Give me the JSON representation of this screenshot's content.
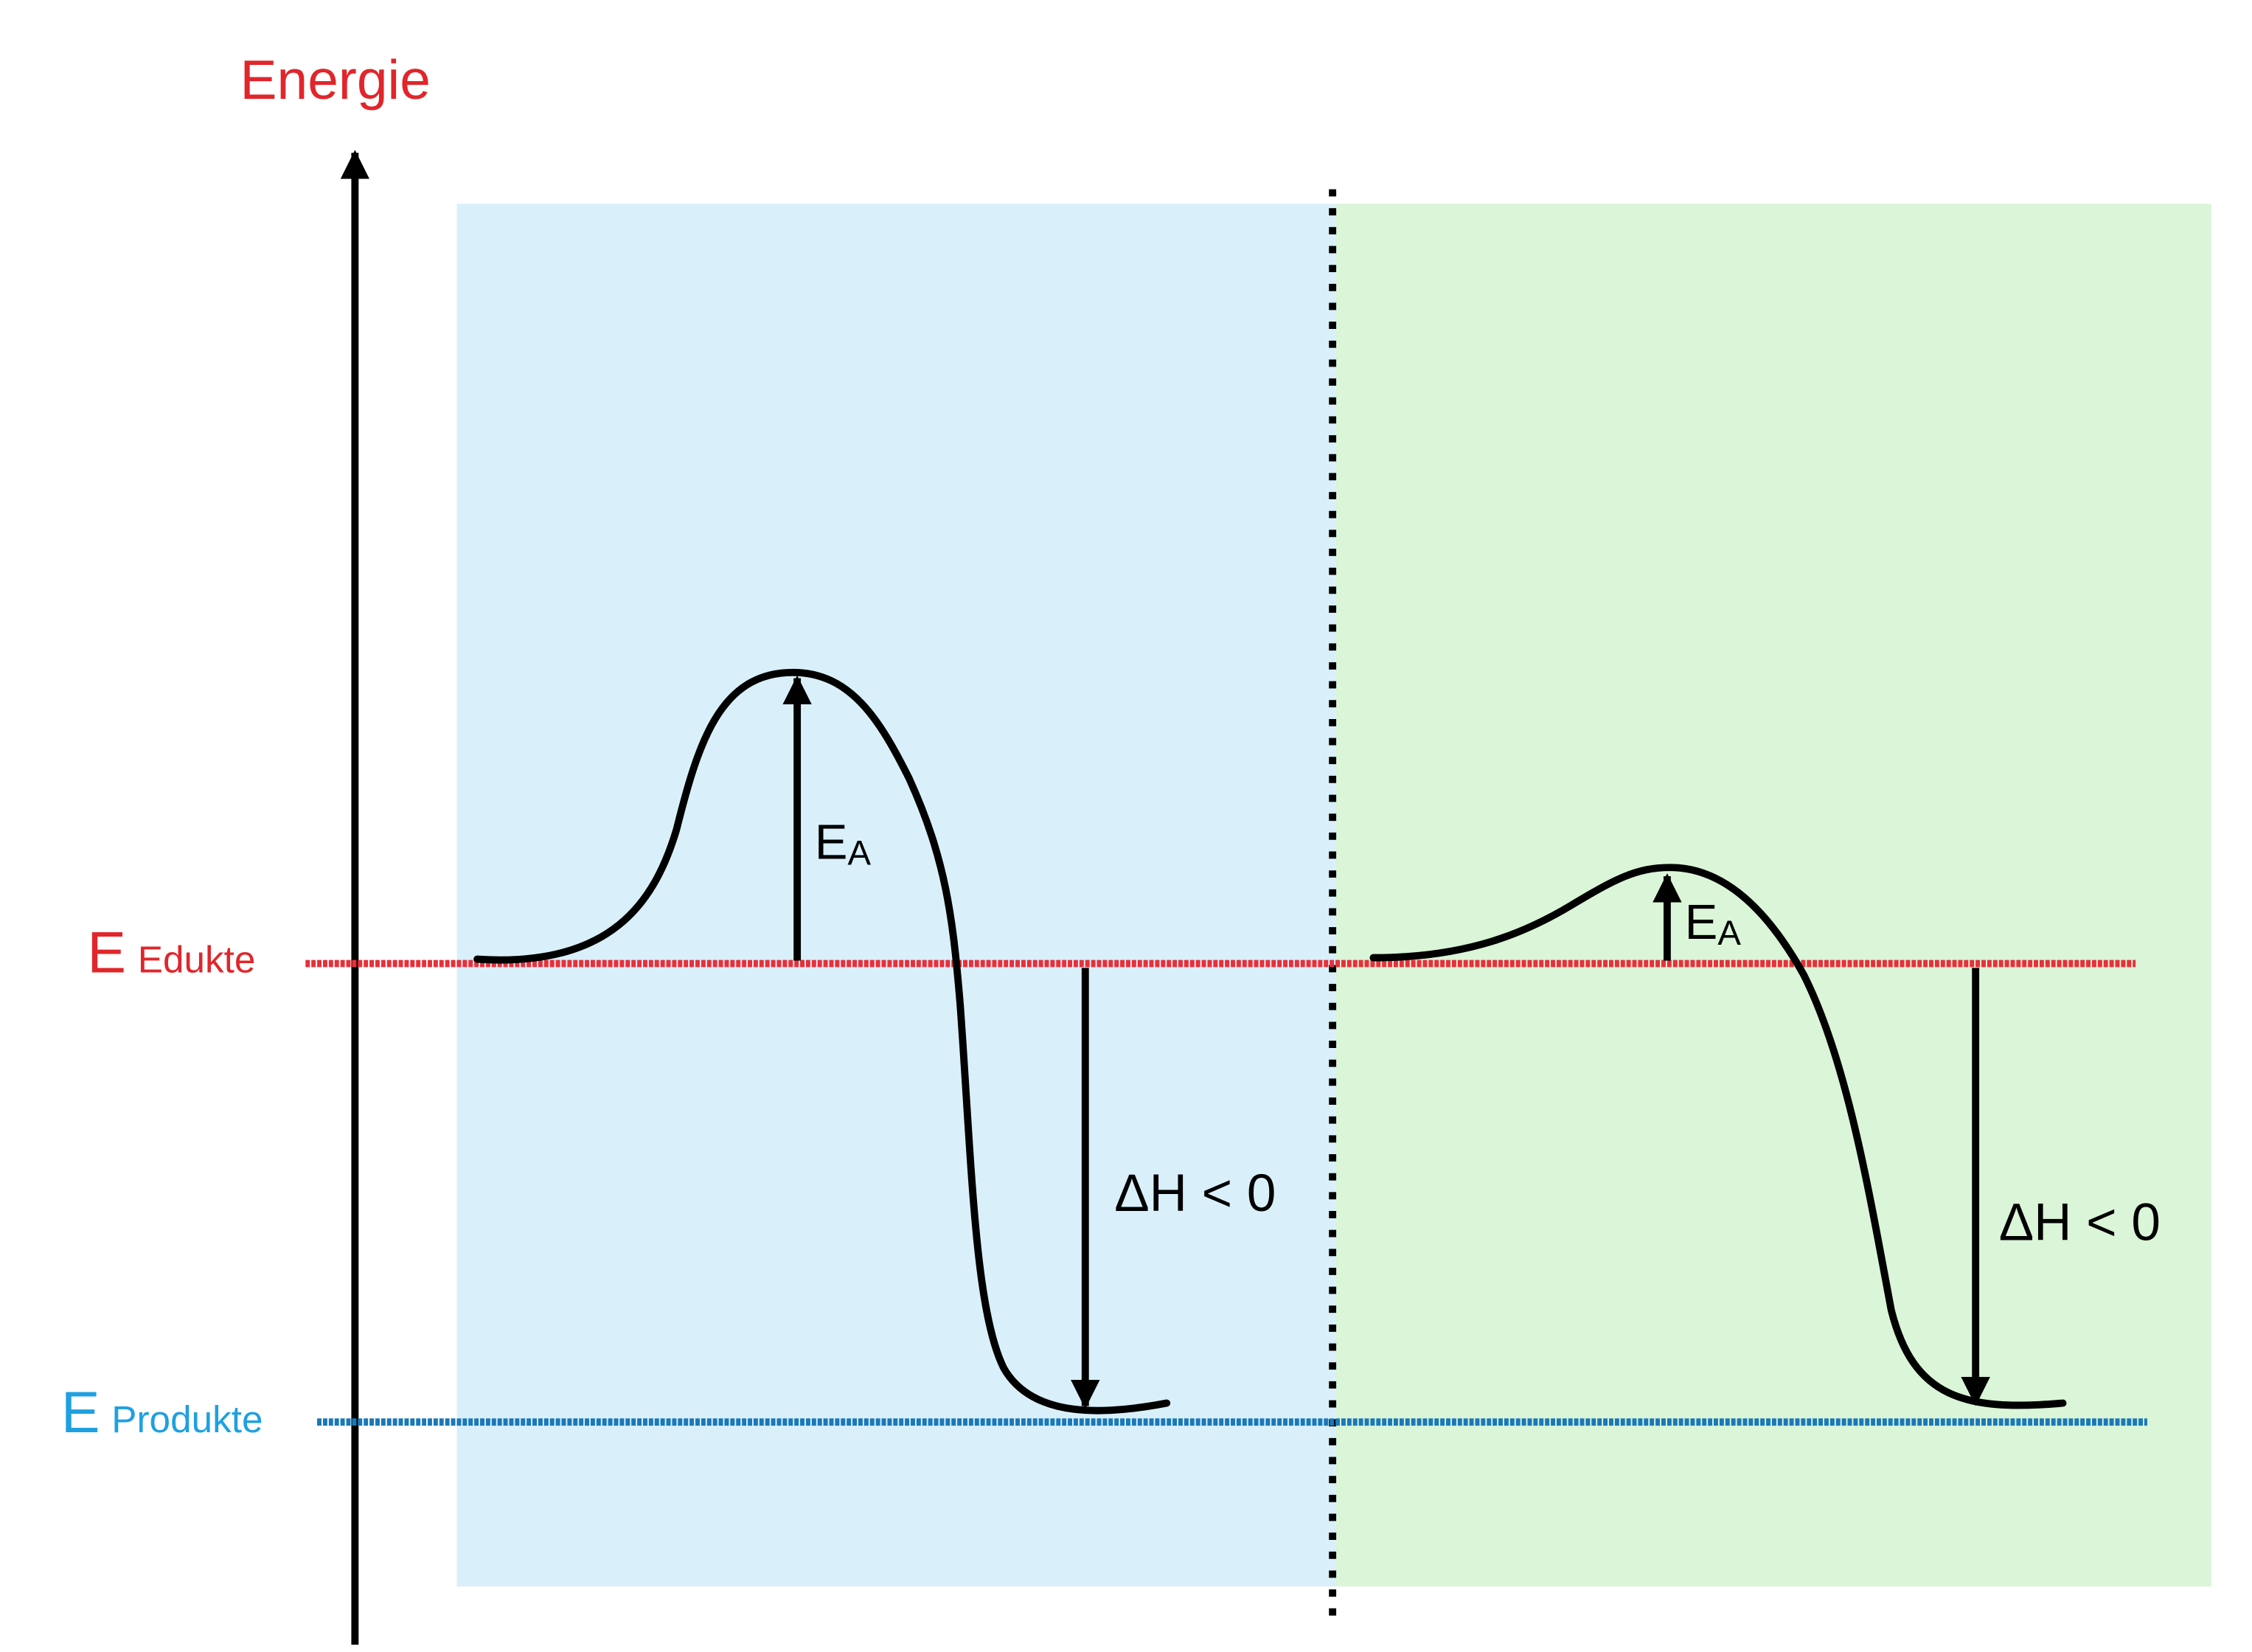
{
  "axis_label": "Energie",
  "levels": [
    {
      "symbol": "E",
      "subscript": "Edukte"
    },
    {
      "symbol": "E",
      "subscript": "Produkte"
    }
  ],
  "panels": [
    {
      "activation": {
        "symbol": "E",
        "subscript": "A"
      },
      "enthalpy": "ΔH < 0"
    },
    {
      "activation": {
        "symbol": "E",
        "subscript": "A"
      },
      "enthalpy": "ΔH < 0"
    }
  ]
}
